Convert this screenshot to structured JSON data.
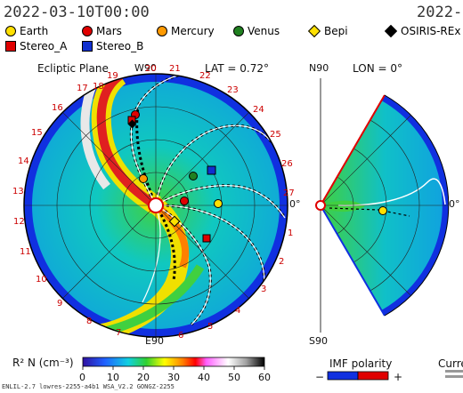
{
  "header": {
    "datetime": "2022-03-10T00:00",
    "datetime_right": "2022-"
  },
  "legend": {
    "row1": [
      {
        "label": "Earth",
        "color": "#ffe000",
        "shape": "circle"
      },
      {
        "label": "Mars",
        "color": "#e00000",
        "shape": "circle"
      },
      {
        "label": "Mercury",
        "color": "#ff9a00",
        "shape": "circle"
      },
      {
        "label": "Venus",
        "color": "#208020",
        "shape": "circle"
      },
      {
        "label": "Bepi",
        "color": "#ffe000",
        "shape": "diamond"
      },
      {
        "label": "OSIRIS-REx",
        "color": "#000000",
        "shape": "diamond"
      }
    ],
    "row2": [
      {
        "label": "Stereo_A",
        "color": "#e00000",
        "shape": "square"
      },
      {
        "label": "Stereo_B",
        "color": "#1030d0",
        "shape": "square"
      }
    ]
  },
  "ecliptic": {
    "title": "Ecliptic Plane",
    "w90": "W90",
    "lat": "LAT = 0.72°",
    "e90": "E90",
    "zero": "0°",
    "numbers": [
      "19",
      "20",
      "21",
      "22",
      "23",
      "24",
      "25",
      "26",
      "27",
      "1",
      "2",
      "3",
      "4",
      "5",
      "6",
      "7",
      "8",
      "9",
      "10",
      "11",
      "12",
      "13",
      "14",
      "15",
      "16",
      "17",
      "18"
    ]
  },
  "meridional": {
    "n90": "N90",
    "lon": "LON = 0°",
    "s90": "S90",
    "zero": "0°"
  },
  "colorbar": {
    "label": "R² N (cm⁻³)",
    "ticks": [
      "0",
      "10",
      "20",
      "30",
      "40",
      "50",
      "60"
    ]
  },
  "imf": {
    "label": "IMF polarity",
    "minus": "−",
    "plus": "+"
  },
  "current": {
    "label": "Curre"
  },
  "footer": {
    "text": "ENLIL-2.7 lowres-2255-a4b1 WSA_V2.2 GONGZ-2255"
  },
  "colors": {
    "low": "#1030d0",
    "mid": "#10c0c0",
    "green": "#40d040",
    "yellow": "#f0e000",
    "red": "#e00000"
  }
}
